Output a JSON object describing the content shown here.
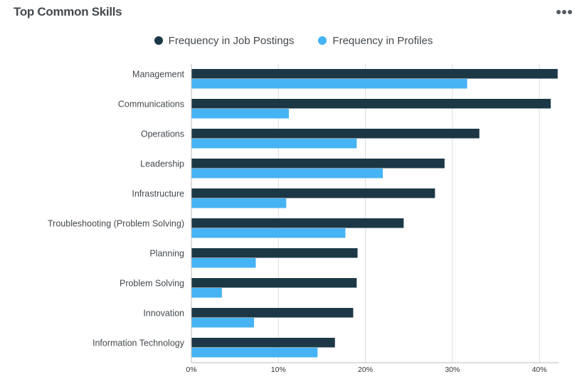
{
  "header": {
    "title": "Top Common Skills",
    "menu_icon": "more-horizontal-icon"
  },
  "colors": {
    "job_postings": "#1c3847",
    "profiles": "#46b3f4",
    "gridline": "#dcdcdc"
  },
  "chart_data": {
    "type": "bar",
    "orientation": "horizontal",
    "title": "Top Common Skills",
    "legend_position": "top-center",
    "grid": true,
    "categories": [
      "Management",
      "Communications",
      "Operations",
      "Leadership",
      "Infrastructure",
      "Troubleshooting (Problem Solving)",
      "Planning",
      "Problem Solving",
      "Innovation",
      "Information Technology"
    ],
    "series": [
      {
        "name": "Frequency in Job Postings",
        "values": [
          42.1,
          41.3,
          33.1,
          29.1,
          28.0,
          24.4,
          19.1,
          19.0,
          18.6,
          16.5
        ]
      },
      {
        "name": "Frequency in Profiles",
        "values": [
          31.7,
          11.2,
          19.0,
          22.0,
          10.9,
          17.7,
          7.4,
          3.5,
          7.2,
          14.5
        ]
      }
    ],
    "xlim": [
      0,
      42.2
    ],
    "xticks": [
      0,
      10,
      20,
      30,
      40
    ],
    "xtick_labels": [
      "0%",
      "10%",
      "20%",
      "30%",
      "40%"
    ]
  }
}
